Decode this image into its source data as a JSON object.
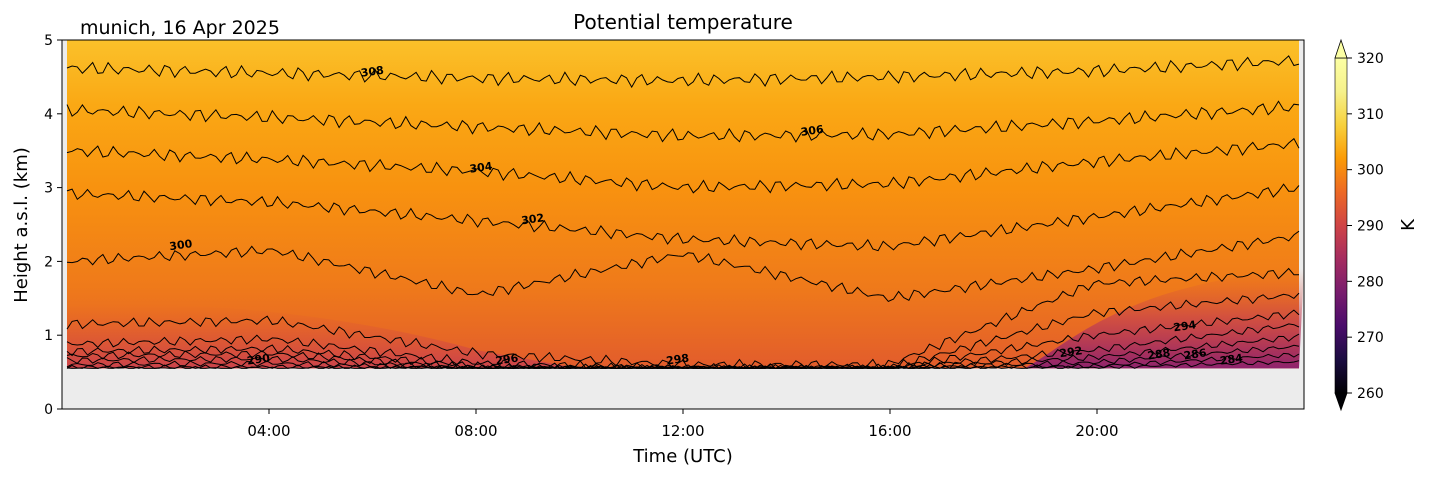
{
  "chart_data": {
    "type": "heatmap",
    "title": "Potential temperature",
    "location_date": "munich, 16 Apr 2025",
    "xlabel": "Time (UTC)",
    "ylabel": "Height a.s.l. (km)",
    "xlim_hours": [
      0,
      24
    ],
    "ylim_km": [
      0,
      5
    ],
    "x_ticks": [
      {
        "hour": 4,
        "label": "04:00"
      },
      {
        "hour": 8,
        "label": "08:00"
      },
      {
        "hour": 12,
        "label": "12:00"
      },
      {
        "hour": 16,
        "label": "16:00"
      },
      {
        "hour": 20,
        "label": "20:00"
      }
    ],
    "y_ticks": [
      {
        "value": 0,
        "label": "0"
      },
      {
        "value": 1,
        "label": "1"
      },
      {
        "value": 2,
        "label": "2"
      },
      {
        "value": 3,
        "label": "3"
      },
      {
        "value": 4,
        "label": "4"
      },
      {
        "value": 5,
        "label": "5"
      }
    ],
    "colorbar": {
      "label": "K",
      "min": 260,
      "max": 320,
      "colormap": "inferno",
      "extend": "both",
      "ticks": [
        {
          "value": 260,
          "label": "260"
        },
        {
          "value": 270,
          "label": "270"
        },
        {
          "value": 280,
          "label": "280"
        },
        {
          "value": 290,
          "label": "290"
        },
        {
          "value": 300,
          "label": "300"
        },
        {
          "value": 310,
          "label": "310"
        },
        {
          "value": 320,
          "label": "320"
        }
      ]
    },
    "missing_below_km": 0.55,
    "missing_color": "#ececec",
    "contour_interval_K": 2,
    "contours": [
      {
        "level": 308,
        "heights_km": [
          4.62,
          4.55,
          4.48,
          4.45,
          4.5,
          4.58,
          4.72
        ]
      },
      {
        "level": 306,
        "heights_km": [
          4.05,
          3.95,
          3.82,
          3.7,
          3.72,
          3.9,
          4.1
        ]
      },
      {
        "level": 304,
        "heights_km": [
          3.5,
          3.38,
          3.22,
          3.0,
          3.05,
          3.35,
          3.6
        ]
      },
      {
        "level": 302,
        "heights_km": [
          2.92,
          2.8,
          2.55,
          2.3,
          2.2,
          2.6,
          3.0
        ]
      },
      {
        "level": 300,
        "heights_km": [
          2.0,
          2.15,
          1.55,
          2.1,
          1.5,
          1.9,
          2.35
        ]
      },
      {
        "level": 298,
        "heights_km": [
          1.15,
          1.2,
          0.75,
          0.6,
          0.6,
          1.7,
          1.85
        ]
      },
      {
        "level": 296,
        "heights_km": [
          0.88,
          0.95,
          0.62,
          0.55,
          0.55,
          1.3,
          1.55
        ]
      },
      {
        "level": 294,
        "heights_km": [
          0.78,
          0.82,
          0.58,
          0.55,
          0.55,
          1.0,
          1.3
        ]
      },
      {
        "level": 292,
        "heights_km": [
          0.72,
          0.75,
          0.56,
          0.55,
          0.55,
          0.8,
          1.15
        ]
      },
      {
        "level": 290,
        "heights_km": [
          0.66,
          0.68,
          0.55,
          0.55,
          0.55,
          0.7,
          0.98
        ]
      },
      {
        "level": 288,
        "heights_km": [
          0.6,
          0.62,
          0.55,
          0.55,
          0.55,
          0.63,
          0.85
        ]
      },
      {
        "level": 286,
        "heights_km": [
          0.56,
          0.57,
          0.55,
          0.55,
          0.55,
          0.58,
          0.74
        ]
      },
      {
        "level": 284,
        "heights_km": [
          0.55,
          0.55,
          0.55,
          0.55,
          0.55,
          0.56,
          0.64
        ]
      }
    ],
    "contour_labels": [
      {
        "text": "308",
        "hour": 6.0,
        "km": 4.55
      },
      {
        "text": "306",
        "hour": 14.5,
        "km": 3.75
      },
      {
        "text": "304",
        "hour": 8.1,
        "km": 3.25
      },
      {
        "text": "302",
        "hour": 9.1,
        "km": 2.55
      },
      {
        "text": "300",
        "hour": 2.3,
        "km": 2.2
      },
      {
        "text": "298",
        "hour": 11.9,
        "km": 0.65
      },
      {
        "text": "296",
        "hour": 8.6,
        "km": 0.65
      },
      {
        "text": "290",
        "hour": 3.8,
        "km": 0.65
      },
      {
        "text": "292",
        "hour": 19.5,
        "km": 0.75
      },
      {
        "text": "294",
        "hour": 21.7,
        "km": 1.1
      },
      {
        "text": "288",
        "hour": 21.2,
        "km": 0.72
      },
      {
        "text": "286",
        "hour": 21.9,
        "km": 0.72
      },
      {
        "text": "284",
        "hour": 22.6,
        "km": 0.65
      }
    ]
  }
}
